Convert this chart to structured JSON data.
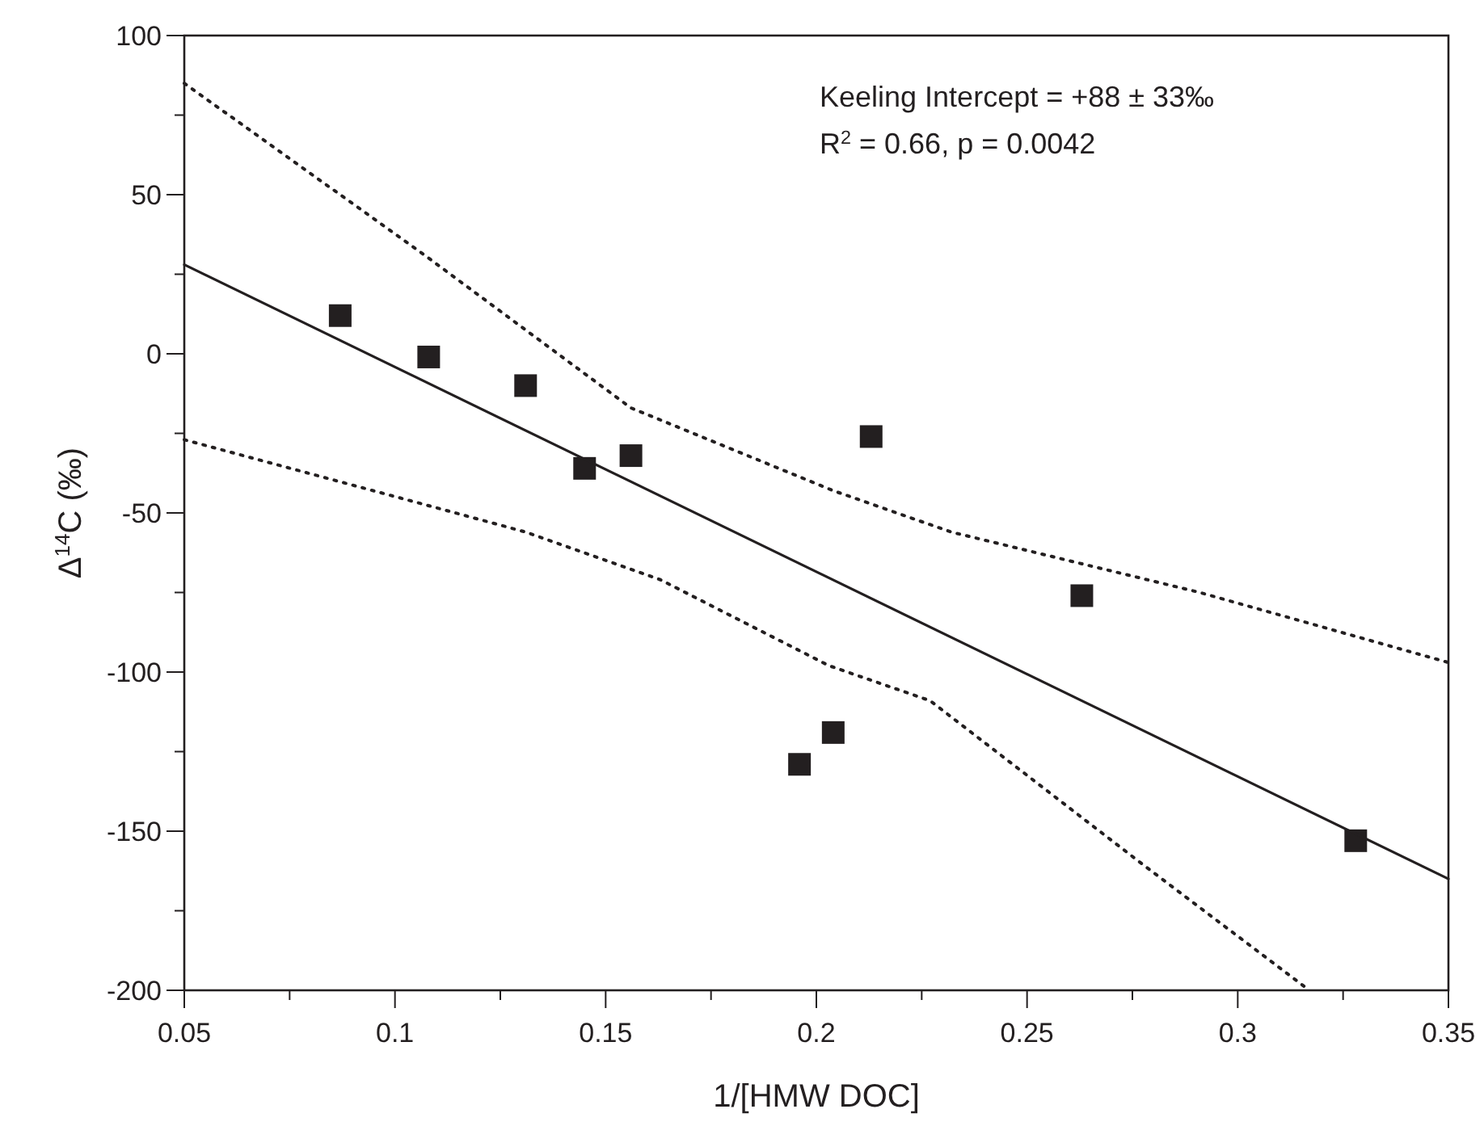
{
  "chart_data": {
    "type": "scatter",
    "xlabel": "1/[HMW DOC]",
    "ylabel": "Δ$^{14}$C (‰)",
    "annotations": [
      "Keeling Intercept = +88 ± 33‰",
      "R$^{2}$ = 0.66, p = 0.0042"
    ],
    "xlim": [
      0.05,
      0.35
    ],
    "ylim": [
      -200,
      100
    ],
    "xticks": [
      0.05,
      {
        "value": 0.075,
        "label": null
      },
      0.1,
      {
        "value": 0.125,
        "label": null
      },
      0.15,
      {
        "value": 0.175,
        "label": null
      },
      0.2,
      {
        "value": 0.225,
        "label": null
      },
      0.25,
      {
        "value": 0.275,
        "label": null
      },
      0.3,
      {
        "value": 0.325,
        "label": null
      },
      0.35
    ],
    "yticks": [
      -200,
      {
        "value": -175,
        "label": null
      },
      -150,
      {
        "value": -125,
        "label": null
      },
      -100,
      {
        "value": -75,
        "label": null
      },
      -50,
      {
        "value": -25,
        "label": null
      },
      0,
      {
        "value": 25,
        "label": null
      },
      50,
      {
        "value": 75,
        "label": null
      },
      100
    ],
    "grid": false,
    "series": [
      {
        "marker": "square",
        "color": "#231f20",
        "x": [
          0.087,
          0.108,
          0.131,
          0.145,
          0.156,
          0.196,
          0.204,
          0.213,
          0.263,
          0.328
        ],
        "values": [
          12,
          -1,
          -10,
          -36,
          -32,
          -129,
          -119,
          -26,
          -76,
          -153
        ]
      },
      {
        "type": "line",
        "line_style": "solid",
        "color": "#231f20",
        "x": [
          0.05,
          0.35
        ],
        "values": [
          28,
          -165
        ]
      },
      {
        "type": "line",
        "line_style": "dotted",
        "color": "#231f20",
        "x": [
          0.05,
          0.106,
          0.156,
          0.204,
          0.232,
          0.291,
          0.35
        ],
        "values": [
          85,
          32,
          -17,
          -43,
          -56,
          -75,
          -97
        ]
      },
      {
        "type": "line",
        "line_style": "dotted",
        "color": "#231f20",
        "x": [
          0.05,
          0.106,
          0.131,
          0.163,
          0.203,
          0.227,
          0.278,
          0.317
        ],
        "values": [
          -27,
          -47,
          -56,
          -71,
          -98,
          -109,
          -161,
          -200
        ]
      }
    ]
  }
}
